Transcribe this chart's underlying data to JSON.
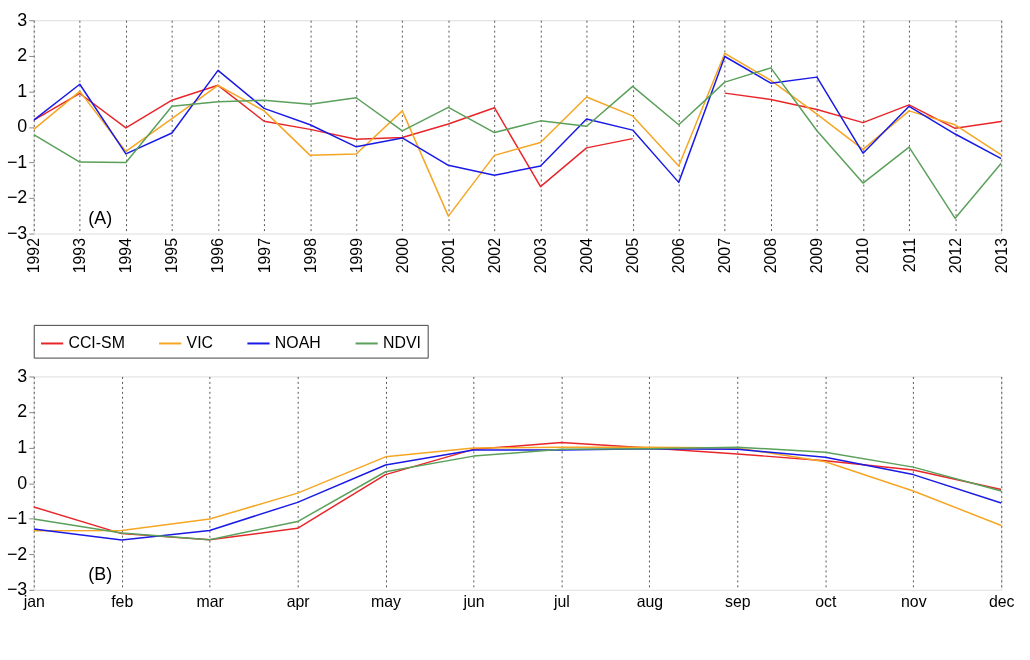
{
  "chart_data": [
    {
      "type": "line",
      "x": [
        1992,
        1993,
        1994,
        1995,
        1996,
        1997,
        1998,
        1999,
        2000,
        2001,
        2002,
        2003,
        2004,
        2005,
        2006,
        2007,
        2008,
        2009,
        2010,
        2011,
        2012,
        2013
      ],
      "xlim": [
        1992,
        2013
      ],
      "xticks": [
        1992,
        1993,
        1994,
        1995,
        1996,
        1997,
        1998,
        1999,
        2000,
        2001,
        2002,
        2003,
        2004,
        2005,
        2006,
        2007,
        2008,
        2009,
        2010,
        2011,
        2012,
        2013
      ],
      "ylim": [
        -3,
        3
      ],
      "yticks": [
        -3,
        -2,
        -1,
        0,
        1,
        2,
        3
      ],
      "grid": "x",
      "legend": "bottom",
      "annotations": [
        "(A)"
      ],
      "series": [
        {
          "name": "CCI-SM",
          "color": "#e8262a",
          "values": [
            0.19,
            0.94,
            -0.03,
            0.75,
            1.17,
            0.16,
            -0.07,
            -0.35,
            -0.3,
            0.08,
            0.54,
            -1.68,
            -0.59,
            -0.33,
            null,
            0.95,
            0.77,
            0.49,
            0.12,
            0.62,
            -0.04,
            0.15
          ]
        },
        {
          "name": "VIC",
          "color": "#f5a623",
          "values": [
            -0.07,
            1.0,
            -0.69,
            0.23,
            1.17,
            0.45,
            -0.8,
            -0.76,
            0.45,
            -2.51,
            -0.8,
            -0.44,
            0.84,
            0.31,
            -1.1,
            2.07,
            1.31,
            0.36,
            -0.63,
            0.45,
            0.06,
            -0.79
          ]
        },
        {
          "name": "NOAH",
          "color": "#1a1ae6",
          "values": [
            0.19,
            1.2,
            -0.76,
            -0.17,
            1.59,
            0.52,
            0.06,
            -0.56,
            -0.31,
            -1.08,
            -1.36,
            -1.1,
            0.22,
            -0.09,
            -1.56,
            1.98,
            1.23,
            1.4,
            -0.74,
            0.58,
            -0.2,
            -0.89
          ]
        },
        {
          "name": "NDVI",
          "color": "#5aa05a",
          "values": [
            -0.22,
            -0.99,
            -1.0,
            0.58,
            0.71,
            0.75,
            0.64,
            0.82,
            -0.11,
            0.55,
            -0.16,
            0.17,
            0.02,
            1.14,
            0.06,
            1.26,
            1.66,
            -0.11,
            -1.58,
            -0.57,
            -2.57,
            -1.02
          ]
        }
      ]
    },
    {
      "type": "line",
      "categories": [
        "jan",
        "feb",
        "mar",
        "apr",
        "may",
        "jun",
        "jul",
        "aug",
        "sep",
        "oct",
        "nov",
        "dec"
      ],
      "ylim": [
        -3,
        3
      ],
      "yticks": [
        -3,
        -2,
        -1,
        0,
        1,
        2,
        3
      ],
      "grid": "x",
      "annotations": [
        "(B)"
      ],
      "series": [
        {
          "color": "#e8262a",
          "values": [
            -0.67,
            -1.42,
            -1.59,
            -1.27,
            0.24,
            0.95,
            1.14,
            0.99,
            0.82,
            0.63,
            0.37,
            -0.18
          ]
        },
        {
          "color": "#f5a623",
          "values": [
            -1.34,
            -1.33,
            -1.01,
            -0.28,
            0.74,
            0.99,
            1.01,
            1.01,
            0.99,
            0.6,
            -0.22,
            -1.19
          ]
        },
        {
          "color": "#1a1ae6",
          "values": [
            -1.29,
            -1.6,
            -1.33,
            -0.54,
            0.51,
            0.93,
            0.93,
            0.97,
            0.95,
            0.73,
            0.24,
            -0.56
          ]
        },
        {
          "color": "#5aa05a",
          "values": [
            -1.01,
            -1.4,
            -1.59,
            -1.08,
            0.32,
            0.76,
            0.95,
            0.97,
            1.01,
            0.87,
            0.45,
            -0.22
          ]
        }
      ]
    }
  ]
}
